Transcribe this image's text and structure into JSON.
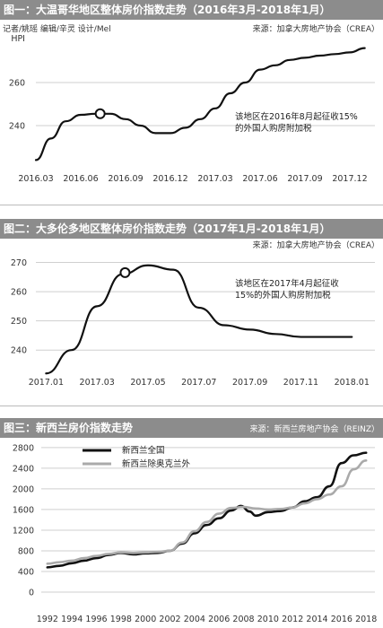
{
  "charts": [
    {
      "header": "图一：大温哥华地区整体房价指数走势（2016年3月-2018年1月）",
      "credit": "记者/姚瑶  编辑/辛灵  设计/Mel",
      "source": "来源：加拿大房地产协会（CREA）",
      "annotation": [
        "该地区在2016年8月起征收15%",
        "的外国人购房附加税"
      ]
    },
    {
      "header": "图二：大多伦多地区整体房价指数走势（2017年1月-2018年1月）",
      "source": "来源：加拿大房地产协会（CREA）",
      "annotation": [
        "该地区在2017年4月起征收",
        "15%的外国人购房附加税"
      ]
    },
    {
      "header": "图三：新西兰房价指数走势",
      "source": "来源：新西兰房地产协会（REINZ）"
    }
  ],
  "chart_data": [
    {
      "type": "line",
      "ylabel": "HPI",
      "ylim": [
        220,
        275
      ],
      "yticks": [
        240,
        260
      ],
      "xlim": [
        0,
        22.5
      ],
      "xticks": [
        {
          "v": 0,
          "label": "2016.03"
        },
        {
          "v": 3,
          "label": "2016.06"
        },
        {
          "v": 6,
          "label": "2016.09"
        },
        {
          "v": 9,
          "label": "2016.12"
        },
        {
          "v": 12,
          "label": "2017.03"
        },
        {
          "v": 15,
          "label": "2017.06"
        },
        {
          "v": 18,
          "label": "2017.09"
        },
        {
          "v": 21,
          "label": "2017.12"
        }
      ],
      "series": [
        {
          "color": "#111111",
          "x": [
            0,
            1,
            2,
            3,
            4,
            5,
            6,
            7,
            8,
            9,
            10,
            11,
            12,
            13,
            14,
            15,
            16,
            17,
            18,
            19,
            20,
            21,
            22
          ],
          "y": [
            224,
            234,
            242,
            245,
            245.5,
            245.5,
            243,
            240,
            236.5,
            236.5,
            239,
            243,
            248,
            255,
            260,
            266,
            268,
            270.5,
            271.5,
            272.5,
            273.2,
            274,
            276
          ]
        }
      ],
      "markers": [
        {
          "x": 4.3,
          "y": 245.5
        }
      ]
    },
    {
      "type": "line",
      "ylim": [
        233,
        272
      ],
      "yticks": [
        240,
        250,
        260,
        270
      ],
      "xlim": [
        -0.4,
        12.8
      ],
      "xticks": [
        {
          "v": 0,
          "label": "2017.01"
        },
        {
          "v": 2,
          "label": "2017.03"
        },
        {
          "v": 4,
          "label": "2017.05"
        },
        {
          "v": 6,
          "label": "2017.07"
        },
        {
          "v": 8,
          "label": "2017.09"
        },
        {
          "v": 10,
          "label": "2017.11"
        },
        {
          "v": 12,
          "label": "2018.01"
        }
      ],
      "series": [
        {
          "color": "#111111",
          "x": [
            0,
            1,
            2,
            3,
            4,
            5,
            6,
            7,
            8,
            9,
            10,
            11,
            12
          ],
          "y": [
            232,
            240,
            255,
            266,
            269,
            267.5,
            254.5,
            248.5,
            247,
            245.5,
            244.5,
            244.5,
            244.5
          ]
        }
      ],
      "markers": [
        {
          "x": 3.1,
          "y": 266.5
        }
      ]
    },
    {
      "type": "line",
      "ylim": [
        0,
        2850
      ],
      "yticks": [
        0,
        400,
        800,
        1200,
        1600,
        2000,
        2400,
        2800
      ],
      "xlim": [
        1991.5,
        2018.5
      ],
      "xticks": [
        {
          "v": 1992,
          "label": "1992"
        },
        {
          "v": 1994,
          "label": "1994"
        },
        {
          "v": 1996,
          "label": "1996"
        },
        {
          "v": 1998,
          "label": "1998"
        },
        {
          "v": 2000,
          "label": "2000"
        },
        {
          "v": 2002,
          "label": "2002"
        },
        {
          "v": 2004,
          "label": "2004"
        },
        {
          "v": 2006,
          "label": "2006"
        },
        {
          "v": 2008,
          "label": "2008"
        },
        {
          "v": 2010,
          "label": "2010"
        },
        {
          "v": 2012,
          "label": "2012"
        },
        {
          "v": 2014,
          "label": "2014"
        },
        {
          "v": 2016,
          "label": "2016"
        },
        {
          "v": 2018,
          "label": "2018"
        }
      ],
      "series": [
        {
          "name": "新西兰全国",
          "color": "#111111",
          "width": 2.6,
          "x": [
            1992,
            1993,
            1994,
            1995,
            1996,
            1997,
            1998,
            1999,
            2000,
            2001,
            2002,
            2003,
            2004,
            2005,
            2006,
            2007,
            2007.8,
            2008.5,
            2009,
            2010,
            2011,
            2012,
            2013,
            2014,
            2015,
            2016,
            2017,
            2018
          ],
          "y": [
            480,
            510,
            560,
            610,
            660,
            720,
            760,
            730,
            750,
            760,
            800,
            940,
            1140,
            1300,
            1430,
            1580,
            1670,
            1560,
            1480,
            1550,
            1570,
            1640,
            1760,
            1840,
            2050,
            2500,
            2650,
            2700
          ]
        },
        {
          "name": "新西兰除奥克兰外",
          "color": "#aaaaaa",
          "width": 2.6,
          "x": [
            1992,
            1993,
            1994,
            1995,
            1996,
            1997,
            1998,
            1999,
            2000,
            2001,
            2002,
            2003,
            2004,
            2005,
            2006,
            2007,
            2008,
            2009,
            2010,
            2011,
            2012,
            2013,
            2014,
            2015,
            2016,
            2017,
            2018
          ],
          "y": [
            550,
            580,
            610,
            660,
            700,
            740,
            770,
            760,
            770,
            780,
            800,
            960,
            1180,
            1360,
            1520,
            1630,
            1650,
            1620,
            1600,
            1610,
            1640,
            1720,
            1800,
            1890,
            2050,
            2380,
            2550
          ]
        }
      ]
    }
  ]
}
